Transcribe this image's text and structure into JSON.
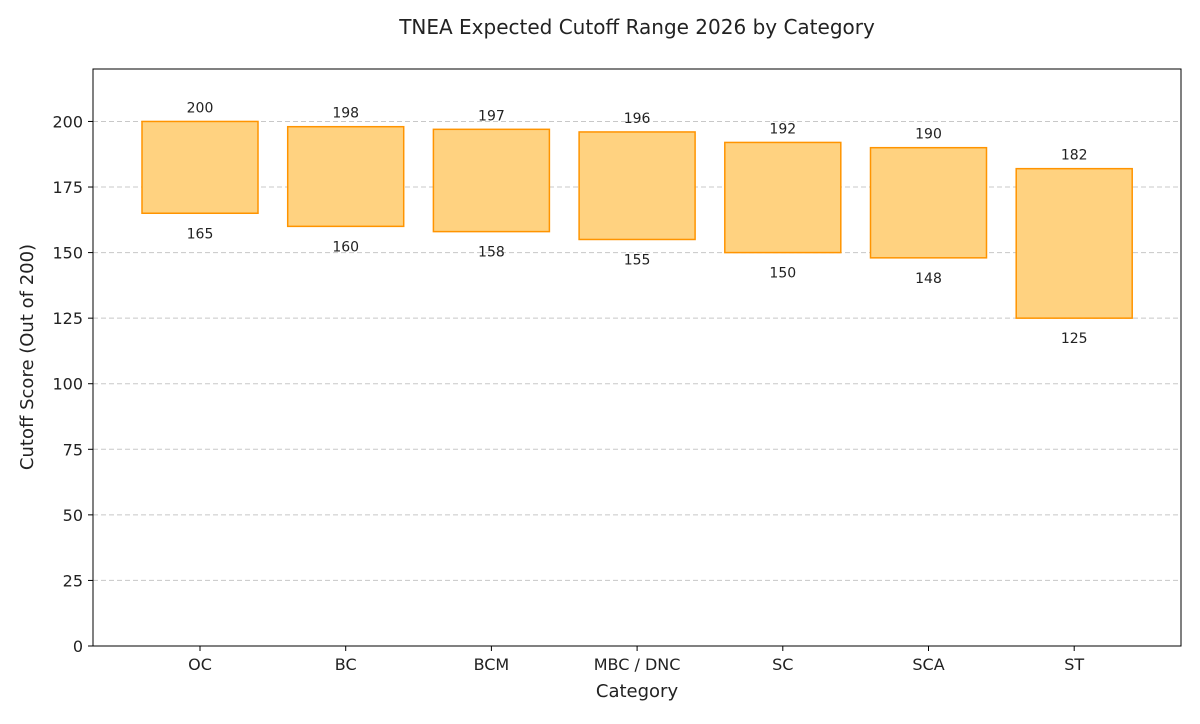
{
  "chart_data": {
    "type": "bar",
    "subtype": "floating-range",
    "title": "TNEA Expected Cutoff Range 2026 by Category",
    "xlabel": "Category",
    "ylabel": "Cutoff Score (Out of 200)",
    "categories": [
      "OC",
      "BC",
      "BCM",
      "MBC / DNC",
      "SC",
      "SCA",
      "ST"
    ],
    "low": [
      165,
      160,
      158,
      155,
      150,
      148,
      125
    ],
    "high": [
      200,
      198,
      197,
      196,
      192,
      190,
      182
    ],
    "ylim": [
      0,
      220
    ],
    "yticks": [
      0,
      25,
      50,
      75,
      100,
      125,
      150,
      175,
      200
    ],
    "grid": true,
    "grid_axis": "y",
    "grid_style": "dashed",
    "legend": "none",
    "colors": {
      "bar_fill": "#FFD280",
      "bar_edge": "#FF9400",
      "grid": "#C8C8C8",
      "axis": "#000000",
      "text": "#222222"
    }
  }
}
